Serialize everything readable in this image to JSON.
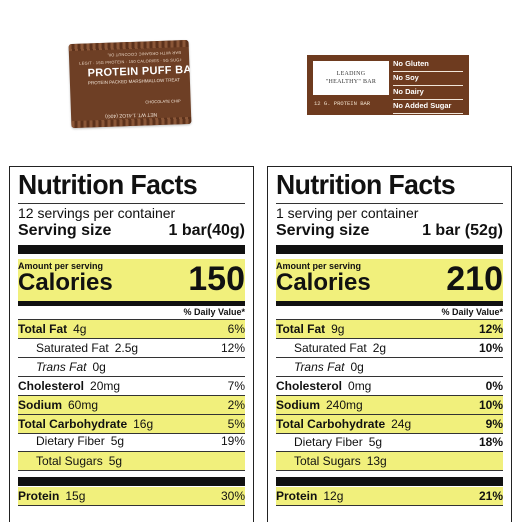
{
  "product_image": {
    "fine_print_1": "BAR WITH ORGANIC COCONUT OIL",
    "fine_print_2": "LEGIT · 15G PROTEIN · 150 CALORIES · 5G SUGAR",
    "name": "PROTEIN PUFF BAR",
    "subtitle": "PROTEIN PACKED MARSHMALLOW TREAT",
    "flavor": "CHOCOLATE CHIP",
    "net_wt": "NET WT. 1.41OZ (40G)"
  },
  "badge": {
    "leading_line1": "LEADING",
    "leading_line2": "\"HEALTHY\" BAR",
    "protein": "12 G. PROTEIN BAR",
    "claims": [
      "No Gluten",
      "No Soy",
      "No Dairy",
      "No Added Sugar"
    ]
  },
  "left": {
    "title": "Nutrition Facts",
    "servings": "12 servings per container",
    "size_label": "Serving size",
    "size_value": "1 bar(40g)",
    "amount": "Amount per serving",
    "calories_label": "Calories",
    "calories": "150",
    "dv_header": "% Daily Value*",
    "rows": [
      {
        "name": "Total Fat",
        "amt": "4g",
        "pct": "6%"
      },
      {
        "name": "Saturated Fat",
        "amt": "2.5g",
        "pct": "12%"
      },
      {
        "name": "Trans Fat",
        "amt": "0g",
        "pct": ""
      },
      {
        "name": "Cholesterol",
        "amt": "20mg",
        "pct": "7%"
      },
      {
        "name": "Sodium",
        "amt": "60mg",
        "pct": "2%"
      },
      {
        "name": "Total Carbohydrate",
        "amt": "16g",
        "pct": "5%"
      },
      {
        "name": "Dietary Fiber",
        "amt": "5g",
        "pct": "19%"
      },
      {
        "name": "Total Sugars",
        "amt": "5g",
        "pct": ""
      },
      {
        "name": "Protein",
        "amt": "15g",
        "pct": "30%"
      }
    ]
  },
  "right": {
    "title": "Nutrition Facts",
    "servings": "1 serving per container",
    "size_label": "Serving size",
    "size_value": "1 bar (52g)",
    "amount": "Amount per serving",
    "calories_label": "Calories",
    "calories": "210",
    "dv_header": "% Daily Value*",
    "rows": [
      {
        "name": "Total Fat",
        "amt": "9g",
        "pct": "12%"
      },
      {
        "name": "Saturated Fat",
        "amt": "2g",
        "pct": "10%"
      },
      {
        "name": "Trans Fat",
        "amt": "0g",
        "pct": ""
      },
      {
        "name": "Cholesterol",
        "amt": "0mg",
        "pct": "0%"
      },
      {
        "name": "Sodium",
        "amt": "240mg",
        "pct": "10%"
      },
      {
        "name": "Total Carbohydrate",
        "amt": "24g",
        "pct": "9%"
      },
      {
        "name": "Dietary Fiber",
        "amt": "5g",
        "pct": "18%"
      },
      {
        "name": "Total Sugars",
        "amt": "13g",
        "pct": ""
      },
      {
        "name": "Protein",
        "amt": "12g",
        "pct": "21%"
      }
    ]
  },
  "colors": {
    "highlight": "#f1f07c",
    "brown": "#6e3b1f"
  }
}
